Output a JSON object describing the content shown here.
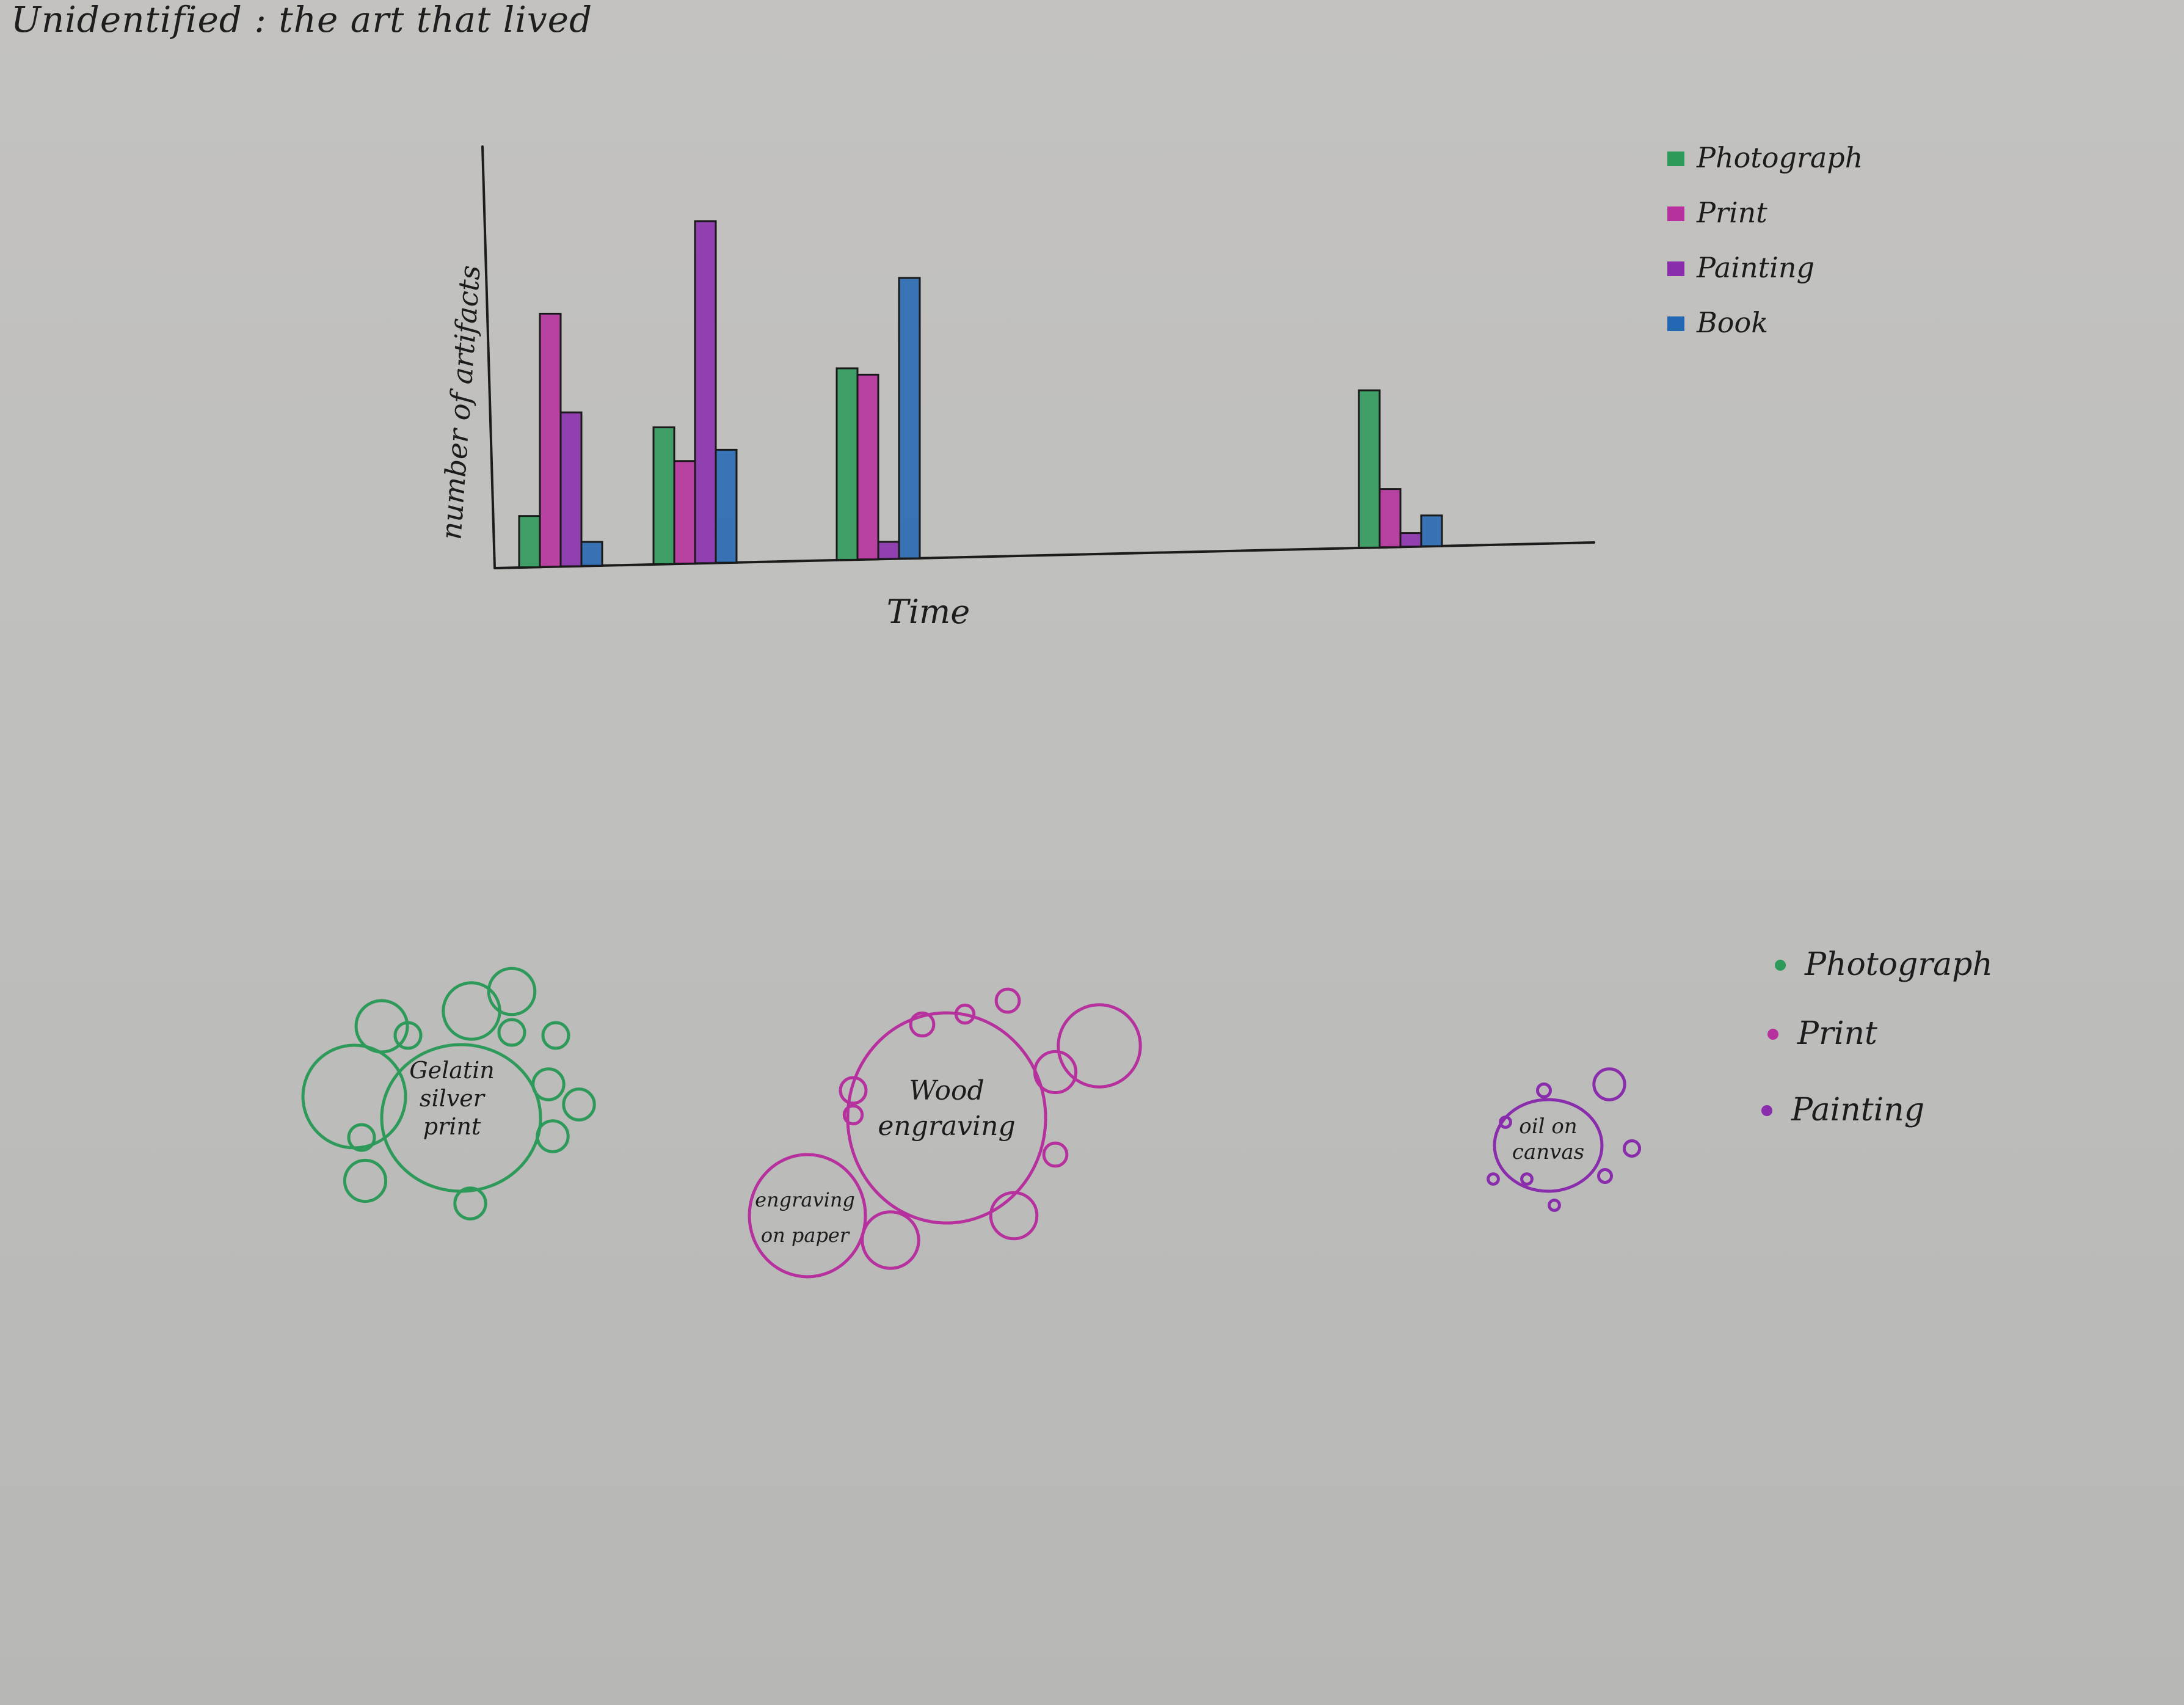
{
  "title": "Unidentified : the art that lived",
  "colors": {
    "Photograph": "#2e9a5a",
    "Print": "#b6309e",
    "Painting": "#8a2dad",
    "Book": "#2468b4",
    "ink": "#1c1c1c"
  },
  "chart_data": [
    {
      "type": "bar",
      "xlabel": "Time",
      "ylabel": "number of artifacts",
      "grid": false,
      "legend_position": "top-right",
      "ylim": [
        0,
        100
      ],
      "categories": [
        "",
        "",
        "",
        ""
      ],
      "series": [
        {
          "name": "Photograph",
          "values": [
            15,
            40,
            56,
            46
          ]
        },
        {
          "name": "Print",
          "values": [
            74,
            30,
            54,
            17
          ]
        },
        {
          "name": "Painting",
          "values": [
            45,
            100,
            5,
            4
          ]
        },
        {
          "name": "Book",
          "values": [
            7,
            33,
            82,
            9
          ]
        }
      ]
    },
    {
      "type": "bubble",
      "legend_position": "right",
      "legend": [
        "Photograph",
        "Print",
        "Painting"
      ],
      "clusters": [
        {
          "category": "Photograph",
          "labels": [
            "Gelatin",
            "silver",
            "print"
          ],
          "main_size": 1.0,
          "satellites": [
            2.0,
            0.5,
            1.1,
            0.9,
            1.0,
            0.8,
            0.6,
            0.6,
            0.6,
            0.5,
            0.6,
            0.5,
            0.5
          ]
        },
        {
          "category": "Print",
          "labels": [
            "Wood",
            "engraving"
          ],
          "main_size": 1.5,
          "satellites": [
            1.6,
            1.1,
            0.9,
            0.8,
            0.5,
            0.45,
            0.35,
            0.45,
            0.35,
            0.45
          ]
        },
        {
          "category": "Print",
          "labels": [
            "engraving",
            "on paper"
          ],
          "main_size": 0.75,
          "satellites": []
        },
        {
          "category": "Painting",
          "labels": [
            "oil on",
            "canvas"
          ],
          "main_size": 0.5,
          "satellites": [
            0.6,
            0.3,
            0.25,
            0.2,
            0.2,
            0.25,
            0.2,
            0.2
          ]
        }
      ]
    }
  ]
}
